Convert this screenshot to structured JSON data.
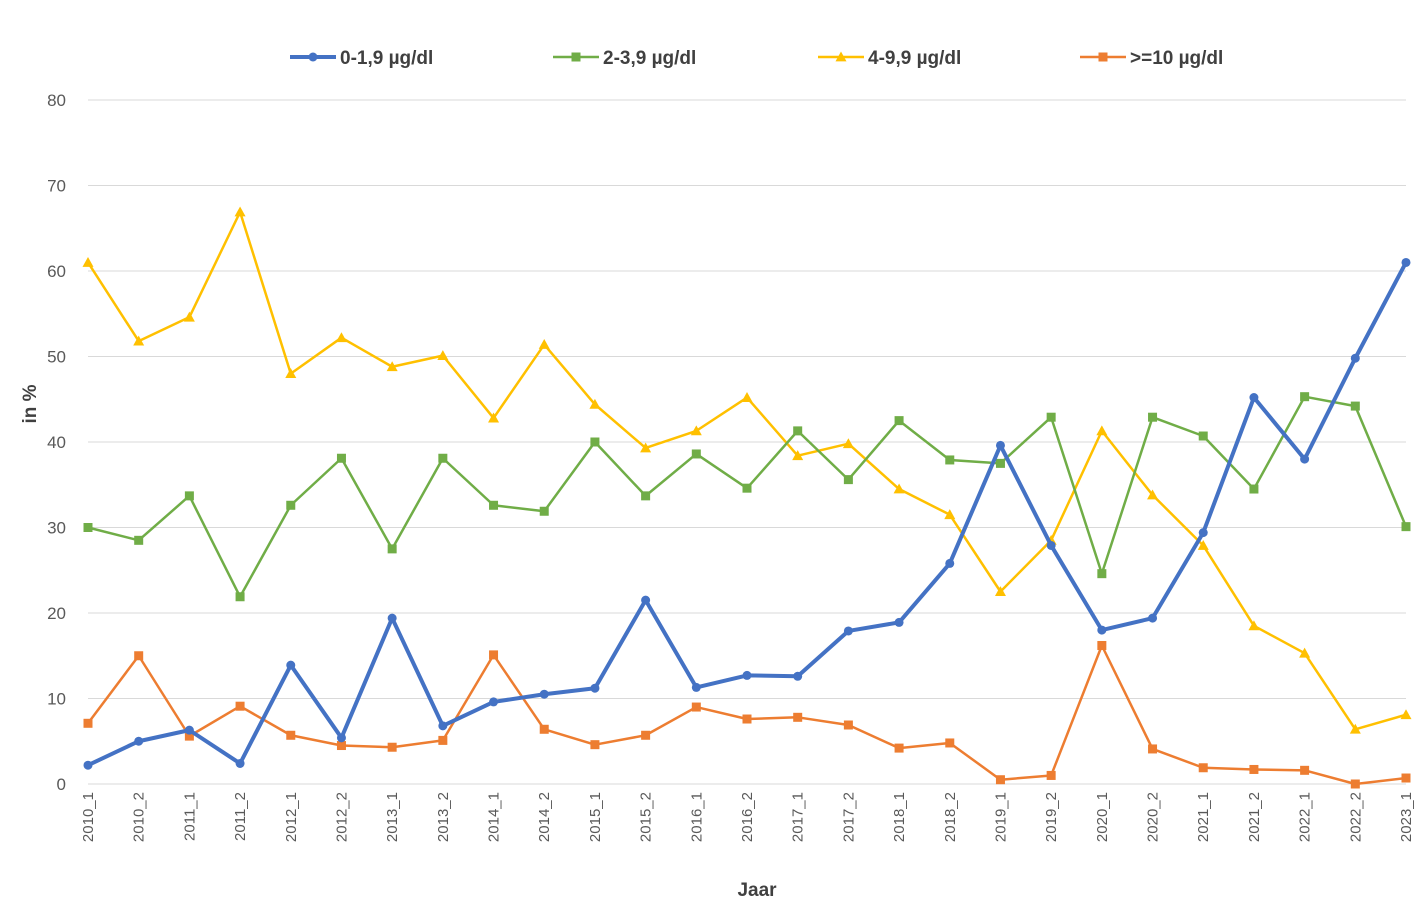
{
  "chart_data": {
    "type": "line",
    "title": "",
    "xlabel": "Jaar",
    "ylabel": "in %",
    "ylim": [
      0,
      80
    ],
    "yticks": [
      0,
      10,
      20,
      30,
      40,
      50,
      60,
      70,
      80
    ],
    "grid": true,
    "legend_position": "top",
    "categories": [
      "2010_1",
      "2010_2",
      "2011_1",
      "2011_2",
      "2012_1",
      "2012_2",
      "2013_1",
      "2013_2",
      "2014_1",
      "2014_2",
      "2015_1",
      "2015_2",
      "2016_1",
      "2016_2",
      "2017_1",
      "2017_2",
      "2018_1",
      "2018_2",
      "2019_1",
      "2019_2",
      "2020_1",
      "2020_2",
      "2021_1",
      "2021_2",
      "2022_1",
      "2022_2",
      "2023_1"
    ],
    "series": [
      {
        "name": "0-1,9 µg/dl",
        "color": "#4472c4",
        "marker": "circle",
        "width": 4,
        "values": [
          2.2,
          5.0,
          6.3,
          2.4,
          13.9,
          5.4,
          19.4,
          6.8,
          9.6,
          10.5,
          11.2,
          21.5,
          11.3,
          12.7,
          12.6,
          17.9,
          18.9,
          25.8,
          39.6,
          27.9,
          18.0,
          19.4,
          29.4,
          45.2,
          38.0,
          49.8,
          61.0
        ]
      },
      {
        "name": "2-3,9 µg/dl",
        "color": "#70ad47",
        "marker": "square",
        "width": 2.5,
        "values": [
          30.0,
          28.5,
          33.7,
          21.9,
          32.6,
          38.1,
          27.5,
          38.1,
          32.6,
          31.9,
          40.0,
          33.7,
          38.6,
          34.6,
          41.3,
          35.6,
          42.5,
          37.9,
          37.5,
          42.9,
          24.6,
          42.9,
          40.7,
          34.5,
          45.3,
          44.2,
          30.1
        ]
      },
      {
        "name": "4-9,9 µg/dl",
        "color": "#ffc000",
        "marker": "triangle",
        "width": 2.5,
        "values": [
          61.0,
          51.8,
          54.6,
          66.9,
          48.0,
          52.2,
          48.8,
          50.1,
          42.8,
          51.4,
          44.4,
          39.3,
          41.3,
          45.2,
          38.4,
          39.8,
          34.5,
          31.5,
          22.5,
          28.5,
          41.3,
          33.8,
          27.9,
          18.5,
          15.3,
          6.4,
          8.1
        ]
      },
      {
        "name": ">=10 µg/dl",
        "color": "#ed7d31",
        "marker": "square",
        "width": 2.5,
        "values": [
          7.1,
          15.0,
          5.6,
          9.1,
          5.7,
          4.5,
          4.3,
          5.1,
          15.1,
          6.4,
          4.6,
          5.7,
          9.0,
          7.6,
          7.8,
          6.9,
          4.2,
          4.8,
          0.5,
          1.0,
          16.2,
          4.1,
          1.9,
          1.7,
          1.6,
          0.0,
          0.7
        ]
      }
    ]
  }
}
